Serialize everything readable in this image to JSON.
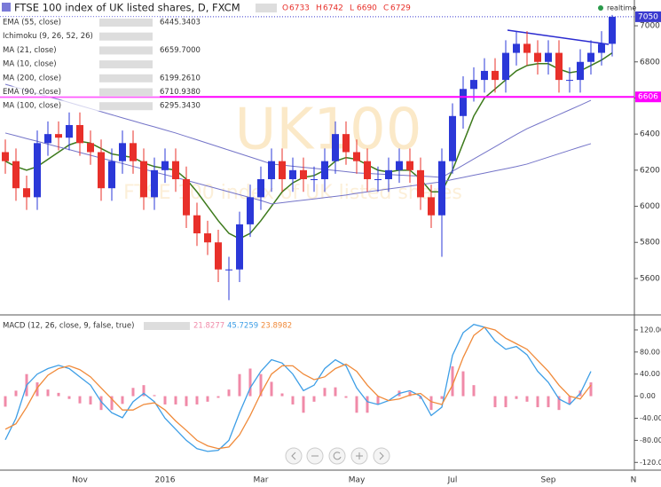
{
  "header": {
    "title": "FTSE 100 index of UK listed shares, D, FXCM",
    "ohlc": [
      {
        "label": "O",
        "value": 6733
      },
      {
        "label": "H",
        "value": 6742
      },
      {
        "label": "L",
        "value": 6690
      },
      {
        "label": "C",
        "value": 6729
      }
    ],
    "status": "realtime"
  },
  "indicators": [
    {
      "name": "EMA (55, close)",
      "value": "6445.3403"
    },
    {
      "name": "Ichimoku (9, 26, 52, 26)",
      "value": null
    },
    {
      "name": "MA (21, close)",
      "value": "6659.7000"
    },
    {
      "name": "MA (10, close)",
      "value": null
    },
    {
      "name": "MA (200, close)",
      "value": "6199.2610"
    },
    {
      "name": "EMA (90, close)",
      "value": "6710.9380"
    },
    {
      "name": "MA (100, close)",
      "value": "6295.3430"
    }
  ],
  "watermark": {
    "symbol": "UK100",
    "description": "FTSE 100 index of UK listed shares"
  },
  "chart_data": [
    {
      "type": "candlestick",
      "categories": [
        null,
        null,
        null,
        null,
        null,
        null,
        null,
        "Nov",
        null,
        null,
        null,
        null,
        null,
        null,
        null,
        "2016",
        null,
        null,
        null,
        null,
        null,
        null,
        null,
        null,
        "Mar",
        null,
        null,
        null,
        null,
        null,
        null,
        null,
        null,
        "May",
        null,
        null,
        null,
        null,
        null,
        null,
        null,
        null,
        "Jul",
        null,
        null,
        null,
        null,
        null,
        null,
        null,
        null,
        "Sep",
        null,
        null,
        null,
        null,
        null,
        null,
        null,
        "N"
      ],
      "open": [
        6300,
        6250,
        6100,
        6050,
        6350,
        6400,
        6380,
        6450,
        6350,
        6300,
        6100,
        6250,
        6350,
        6250,
        6050,
        6200,
        6250,
        6150,
        5950,
        5850,
        5800,
        5650,
        5650,
        5900,
        6050,
        6150,
        6250,
        6150,
        6200,
        6150,
        6150,
        6250,
        6400,
        6300,
        6250,
        6150,
        6150,
        6200,
        6250,
        6200,
        6050,
        5950,
        6250,
        6500,
        6650,
        6700,
        6750,
        6700,
        6850,
        6900,
        6850,
        6800,
        6850,
        6700,
        6700,
        6800,
        6850,
        6900,
        null,
        null
      ],
      "high": [
        6370,
        6320,
        6170,
        6420,
        6470,
        6470,
        6520,
        6520,
        6420,
        6370,
        6320,
        6420,
        6420,
        6320,
        6270,
        6320,
        6320,
        6220,
        6020,
        5920,
        5870,
        5720,
        5970,
        6120,
        6220,
        6320,
        6320,
        6270,
        6270,
        6220,
        6320,
        6470,
        6470,
        6370,
        6320,
        6220,
        6270,
        6320,
        6320,
        6270,
        6120,
        6320,
        6570,
        6720,
        6770,
        6820,
        6820,
        6920,
        6970,
        6970,
        6920,
        6920,
        6920,
        6770,
        6870,
        6920,
        6970,
        7060,
        null,
        null
      ],
      "low": [
        6180,
        6030,
        5980,
        5980,
        6280,
        6310,
        6310,
        6280,
        6230,
        6030,
        6030,
        6180,
        6180,
        5980,
        5980,
        6130,
        6080,
        5880,
        5780,
        5730,
        5580,
        5480,
        5580,
        5830,
        5980,
        6080,
        6080,
        6080,
        6080,
        6080,
        6080,
        6180,
        6230,
        6180,
        6080,
        6080,
        6080,
        6130,
        6130,
        5980,
        5880,
        5720,
        6180,
        6430,
        6580,
        6630,
        6630,
        6630,
        6780,
        6780,
        6730,
        6730,
        6630,
        6630,
        6630,
        6730,
        6780,
        6830,
        null,
        null
      ],
      "close": [
        6250,
        6100,
        6050,
        6350,
        6400,
        6380,
        6450,
        6350,
        6300,
        6100,
        6250,
        6350,
        6250,
        6050,
        6200,
        6250,
        6150,
        5950,
        5850,
        5800,
        5650,
        5650,
        5900,
        6050,
        6150,
        6250,
        6150,
        6200,
        6150,
        6150,
        6250,
        6400,
        6300,
        6250,
        6150,
        6150,
        6200,
        6250,
        6200,
        6050,
        5950,
        6250,
        6500,
        6650,
        6700,
        6750,
        6700,
        6850,
        6900,
        6850,
        6800,
        6850,
        6700,
        6700,
        6800,
        6850,
        6900,
        7050,
        null,
        null
      ],
      "up_color": "#2b38d8",
      "down_color": "#e8302a",
      "lines": [
        {
          "name": "MA (21, close)",
          "color": "#3d7a1c",
          "values": [
            6250,
            6220,
            6200,
            6220,
            6260,
            6300,
            6340,
            6360,
            6350,
            6320,
            6290,
            6280,
            6270,
            6240,
            6220,
            6210,
            6200,
            6150,
            6080,
            6000,
            5920,
            5850,
            5820,
            5850,
            5920,
            6000,
            6080,
            6130,
            6160,
            6170,
            6200,
            6250,
            6270,
            6260,
            6230,
            6200,
            6190,
            6200,
            6200,
            6150,
            6080,
            6080,
            6200,
            6350,
            6500,
            6600,
            6650,
            6700,
            6750,
            6780,
            6790,
            6790,
            6760,
            6740,
            6750,
            6780,
            6810,
            6850,
            null,
            null
          ]
        },
        {
          "name": "MA (100, close)",
          "color": "#7474c8",
          "values": [
            6676,
            6659,
            6642,
            6625,
            6608,
            6592,
            6575,
            6558,
            6541,
            6524,
            6507,
            6490,
            6473,
            6456,
            6440,
            6423,
            6406,
            6387,
            6368,
            6349,
            6330,
            6311,
            6292,
            6273,
            6254,
            6234,
            6228,
            6222,
            6216,
            6210,
            6204,
            6198,
            6192,
            6185,
            6182,
            6179,
            6176,
            6173,
            6170,
            6167,
            6164,
            6160,
            6194,
            6228,
            6262,
            6296,
            6330,
            6364,
            6398,
            6430,
            6456,
            6482,
            6508,
            6534,
            6560,
            6587,
            null,
            null,
            null,
            null
          ]
        },
        {
          "name": "MA (200, close)",
          "color": "#7474c8",
          "values": [
            6406,
            6391,
            6375,
            6360,
            6344,
            6329,
            6314,
            6298,
            6283,
            6267,
            6252,
            6237,
            6221,
            6206,
            6190,
            6175,
            6160,
            6144,
            6128,
            6112,
            6096,
            6080,
            6064,
            6048,
            6032,
            6013,
            6020,
            6027,
            6034,
            6041,
            6048,
            6055,
            6062,
            6072,
            6080,
            6088,
            6096,
            6104,
            6112,
            6120,
            6128,
            6136,
            6148,
            6160,
            6172,
            6184,
            6196,
            6208,
            6220,
            6234,
            6253,
            6272,
            6291,
            6310,
            6329,
            6347,
            null,
            null,
            null,
            null
          ]
        }
      ],
      "hlines": [
        {
          "value": 7050,
          "color": "#3a3ad0",
          "dashed": true
        },
        {
          "value": 6606,
          "color": "#ff00ff",
          "dashed": false
        }
      ],
      "ylim": [
        5408,
        7074
      ],
      "yticks": [
        5600,
        5800,
        6000,
        6200,
        6400,
        6600,
        6800,
        7000
      ],
      "grid": false
    },
    {
      "type": "macd",
      "title": "MACD (12, 26, close, 9, false, true)",
      "series": [
        {
          "name": "histogram",
          "color": "#f08aa8",
          "values": [
            -19,
            10,
            40,
            25,
            12,
            6,
            -5,
            -13,
            -15,
            -25,
            -25,
            -14,
            15,
            20,
            2,
            -15,
            -15,
            -18,
            -15,
            -10,
            -3,
            12,
            40,
            50,
            40,
            26,
            5,
            -15,
            -30,
            -10,
            15,
            16,
            -3,
            -30,
            -30,
            -15,
            0,
            10,
            8,
            -5,
            -25,
            -5,
            54,
            45,
            20,
            0,
            -20,
            -20,
            -5,
            -10,
            -20,
            -20,
            -25,
            -15,
            10,
            25,
            null,
            null,
            null,
            null
          ]
        },
        {
          "name": "macd",
          "color": "#3d9ee6",
          "values": [
            -79,
            -40,
            20,
            40,
            50,
            56,
            50,
            35,
            20,
            -10,
            -30,
            -39,
            -10,
            5,
            -10,
            -40,
            -60,
            -80,
            -95,
            -100,
            -98,
            -80,
            -30,
            15,
            45,
            66,
            60,
            40,
            10,
            20,
            50,
            66,
            55,
            15,
            -10,
            -15,
            -8,
            5,
            10,
            0,
            -35,
            -20,
            74,
            115,
            130,
            125,
            100,
            85,
            90,
            75,
            45,
            25,
            -5,
            -15,
            5,
            45,
            null,
            null,
            null,
            null
          ]
        },
        {
          "name": "signal",
          "color": "#f08a3a",
          "values": [
            -60,
            -50,
            -20,
            15,
            38,
            50,
            55,
            48,
            35,
            15,
            -5,
            -25,
            -25,
            -15,
            -12,
            -25,
            -45,
            -62,
            -80,
            -90,
            -95,
            -92,
            -70,
            -35,
            5,
            40,
            55,
            55,
            40,
            30,
            35,
            50,
            58,
            45,
            20,
            0,
            -8,
            -5,
            2,
            5,
            -10,
            -15,
            20,
            70,
            110,
            125,
            120,
            105,
            95,
            85,
            65,
            45,
            20,
            0,
            -5,
            20,
            null,
            null,
            null,
            null
          ]
        }
      ],
      "legend_values": [
        21.8277,
        45.7259,
        23.8982
      ],
      "ylim": [
        -134,
        144
      ],
      "yticks": [
        {
          "value": 120,
          "label": "120.00"
        },
        {
          "value": 80,
          "label": "80.00"
        },
        {
          "value": 40,
          "label": "40.00"
        },
        {
          "value": 0,
          "label": "0.00"
        },
        {
          "value": -40,
          "label": "-40.00"
        },
        {
          "value": -80,
          "label": "-80.00"
        },
        {
          "value": -120,
          "label": "-120.00"
        }
      ]
    }
  ]
}
